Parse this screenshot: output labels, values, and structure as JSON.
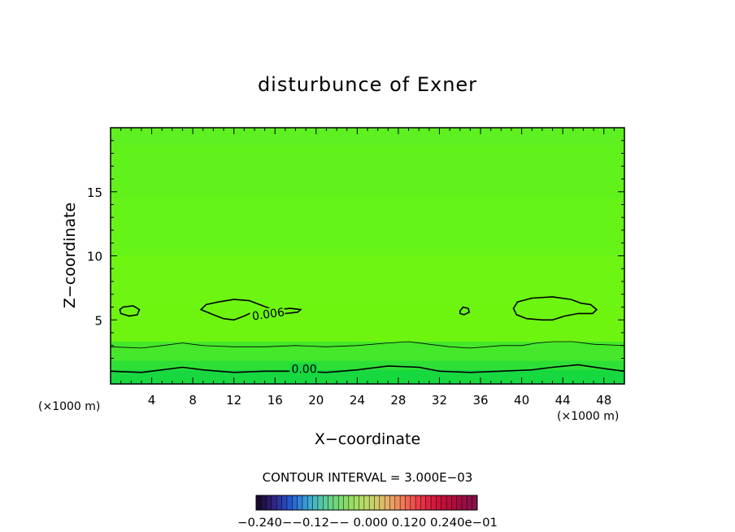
{
  "chart_data": {
    "type": "contour",
    "title": "disturbunce of Exner",
    "xlabel": "X−coordinate",
    "ylabel": "Z−coordinate",
    "x_units": "(×1000 m)",
    "x_units_right": "(×1000 m)",
    "xlim": [
      0,
      50
    ],
    "ylim": [
      0,
      20
    ],
    "x_ticks": [
      4,
      8,
      12,
      16,
      20,
      24,
      28,
      32,
      36,
      40,
      44,
      48
    ],
    "x_tick_labels": [
      "4",
      "8",
      "12",
      "16",
      "20",
      "24",
      "28",
      "32",
      "36",
      "40",
      "44",
      "48"
    ],
    "y_ticks": [
      5,
      10,
      15
    ],
    "y_tick_labels": [
      "5",
      "10",
      "15"
    ],
    "contour_interval_text": "CONTOUR INTERVAL = 3.000E−03",
    "contour_labels": [
      {
        "text": "0.006",
        "x": 13.8,
        "z": 5.1,
        "angle": -8
      },
      {
        "text": "0.00",
        "x": 17.6,
        "z": 1.0,
        "angle": 0
      }
    ],
    "contour_lines": [
      {
        "level": 0.0,
        "points": [
          [
            0,
            1.0
          ],
          [
            3,
            0.9
          ],
          [
            5,
            1.1
          ],
          [
            7,
            1.3
          ],
          [
            9,
            1.1
          ],
          [
            12,
            0.9
          ],
          [
            15,
            1.0
          ],
          [
            18,
            1.0
          ],
          [
            21,
            0.9
          ],
          [
            24,
            1.1
          ],
          [
            27,
            1.4
          ],
          [
            30,
            1.3
          ],
          [
            32,
            1.0
          ],
          [
            35,
            0.9
          ],
          [
            38,
            1.0
          ],
          [
            41,
            1.1
          ],
          [
            43,
            1.3
          ],
          [
            45.5,
            1.5
          ],
          [
            48,
            1.2
          ],
          [
            50,
            1.0
          ]
        ]
      },
      {
        "level": 0.003,
        "points": [
          [
            0,
            2.9
          ],
          [
            3,
            2.8
          ],
          [
            5,
            3.0
          ],
          [
            7,
            3.2
          ],
          [
            9,
            3.0
          ],
          [
            12,
            2.9
          ],
          [
            15,
            2.9
          ],
          [
            18,
            3.0
          ],
          [
            21,
            2.9
          ],
          [
            24,
            3.0
          ],
          [
            27,
            3.2
          ],
          [
            29,
            3.3
          ],
          [
            31,
            3.1
          ],
          [
            33,
            2.9
          ],
          [
            35,
            2.8
          ],
          [
            38,
            3.0
          ],
          [
            40,
            3.0
          ],
          [
            41.5,
            3.2
          ],
          [
            43,
            3.3
          ],
          [
            45,
            3.3
          ],
          [
            47,
            3.1
          ],
          [
            50,
            3.0
          ]
        ]
      },
      {
        "level": 0.006,
        "closed": true,
        "points": [
          [
            0.9,
            5.8
          ],
          [
            1.2,
            6.0
          ],
          [
            2.2,
            6.1
          ],
          [
            2.8,
            5.8
          ],
          [
            2.6,
            5.4
          ],
          [
            1.8,
            5.3
          ],
          [
            1.0,
            5.5
          ]
        ]
      },
      {
        "level": 0.006,
        "closed": true,
        "points": [
          [
            8.8,
            5.8
          ],
          [
            9.3,
            6.2
          ],
          [
            10.5,
            6.4
          ],
          [
            12.0,
            6.6
          ],
          [
            13.5,
            6.5
          ],
          [
            14.8,
            6.1
          ],
          [
            15.5,
            5.9
          ],
          [
            16.3,
            5.8
          ],
          [
            17.5,
            5.9
          ],
          [
            18.5,
            5.8
          ],
          [
            18.2,
            5.6
          ],
          [
            17.0,
            5.5
          ],
          [
            16.3,
            5.6
          ],
          [
            15.5,
            5.3
          ],
          [
            14.8,
            5.3
          ],
          [
            13.8,
            5.6
          ],
          [
            13.0,
            5.3
          ],
          [
            12.0,
            5.0
          ],
          [
            11.0,
            5.1
          ],
          [
            10.0,
            5.4
          ]
        ]
      },
      {
        "level": 0.006,
        "closed": true,
        "points": [
          [
            34.0,
            5.7
          ],
          [
            34.3,
            6.0
          ],
          [
            34.8,
            5.9
          ],
          [
            34.9,
            5.6
          ],
          [
            34.4,
            5.4
          ],
          [
            34.0,
            5.5
          ]
        ]
      },
      {
        "level": 0.006,
        "closed": true,
        "points": [
          [
            39.2,
            5.9
          ],
          [
            39.6,
            6.4
          ],
          [
            41.0,
            6.7
          ],
          [
            43.0,
            6.8
          ],
          [
            44.8,
            6.6
          ],
          [
            45.8,
            6.3
          ],
          [
            46.7,
            6.2
          ],
          [
            47.3,
            5.8
          ],
          [
            46.9,
            5.5
          ],
          [
            45.5,
            5.5
          ],
          [
            44.2,
            5.3
          ],
          [
            43.0,
            5.0
          ],
          [
            42.0,
            5.0
          ],
          [
            40.5,
            5.1
          ],
          [
            39.5,
            5.4
          ]
        ]
      }
    ],
    "fill_bands": [
      {
        "z_top": 20,
        "color": "#5ef020"
      },
      {
        "z_top": 18.6,
        "color": "#61f21c"
      },
      {
        "z_top": 14.5,
        "color": "#66f418"
      },
      {
        "z_top": 10.0,
        "color": "#6cf612"
      },
      {
        "z_top": 6.0,
        "color": "#6df510"
      },
      {
        "z_top": 3.3,
        "color": "#45e82a"
      },
      {
        "z_top": 1.8,
        "color": "#2ee036"
      },
      {
        "z_top": 1.1,
        "color": "#18d840"
      }
    ],
    "colorbar": {
      "tick_labels_text": "−0.240−−0.12−− 0.000  0.120  0.240e−01",
      "colors": [
        "#1a0a30",
        "#22124a",
        "#2a1a66",
        "#302684",
        "#2c349e",
        "#2844b6",
        "#2656c8",
        "#2a6ad2",
        "#3080d6",
        "#3896d4",
        "#3eaace",
        "#46bac0",
        "#52c4ac",
        "#5ccc98",
        "#66d288",
        "#70d67a",
        "#7cda70",
        "#88dc68",
        "#96de66",
        "#a4de64",
        "#b0dc64",
        "#bcd866",
        "#c8d268",
        "#d2ca6a",
        "#dcbe6a",
        "#e4b068",
        "#eaa064",
        "#ee8e5e",
        "#f07a58",
        "#f06652",
        "#ee524c",
        "#ea4048",
        "#e43044",
        "#dc2440",
        "#d41a3c",
        "#cc143a",
        "#c2103a",
        "#b80e3a",
        "#ae0c3c",
        "#a40c40",
        "#9a0c44",
        "#900e48",
        "#86104c"
      ]
    }
  }
}
